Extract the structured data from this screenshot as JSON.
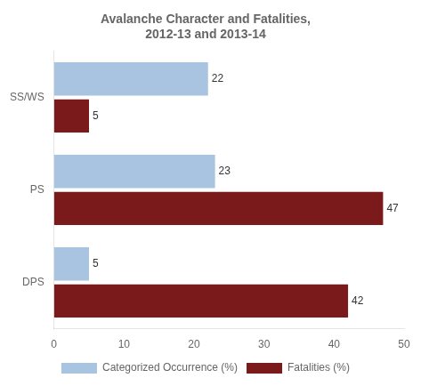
{
  "chart_data": {
    "type": "bar",
    "orientation": "horizontal",
    "title": "Avalanche Character and Fatalities,\n2012-13 and 2013-14",
    "categories": [
      "SS/WS",
      "PS",
      "DPS"
    ],
    "series": [
      {
        "name": "Categorized Occurrence (%)",
        "color": "#a8c4e0",
        "values": [
          22,
          23,
          5
        ]
      },
      {
        "name": "Fatalities (%)",
        "color": "#7b1a1a",
        "values": [
          5,
          47,
          42
        ]
      }
    ],
    "xlim": [
      0,
      50
    ],
    "xticks": [
      0,
      10,
      20,
      30,
      40,
      50
    ],
    "grid": false,
    "legend": "bottom",
    "data_labels": true
  }
}
